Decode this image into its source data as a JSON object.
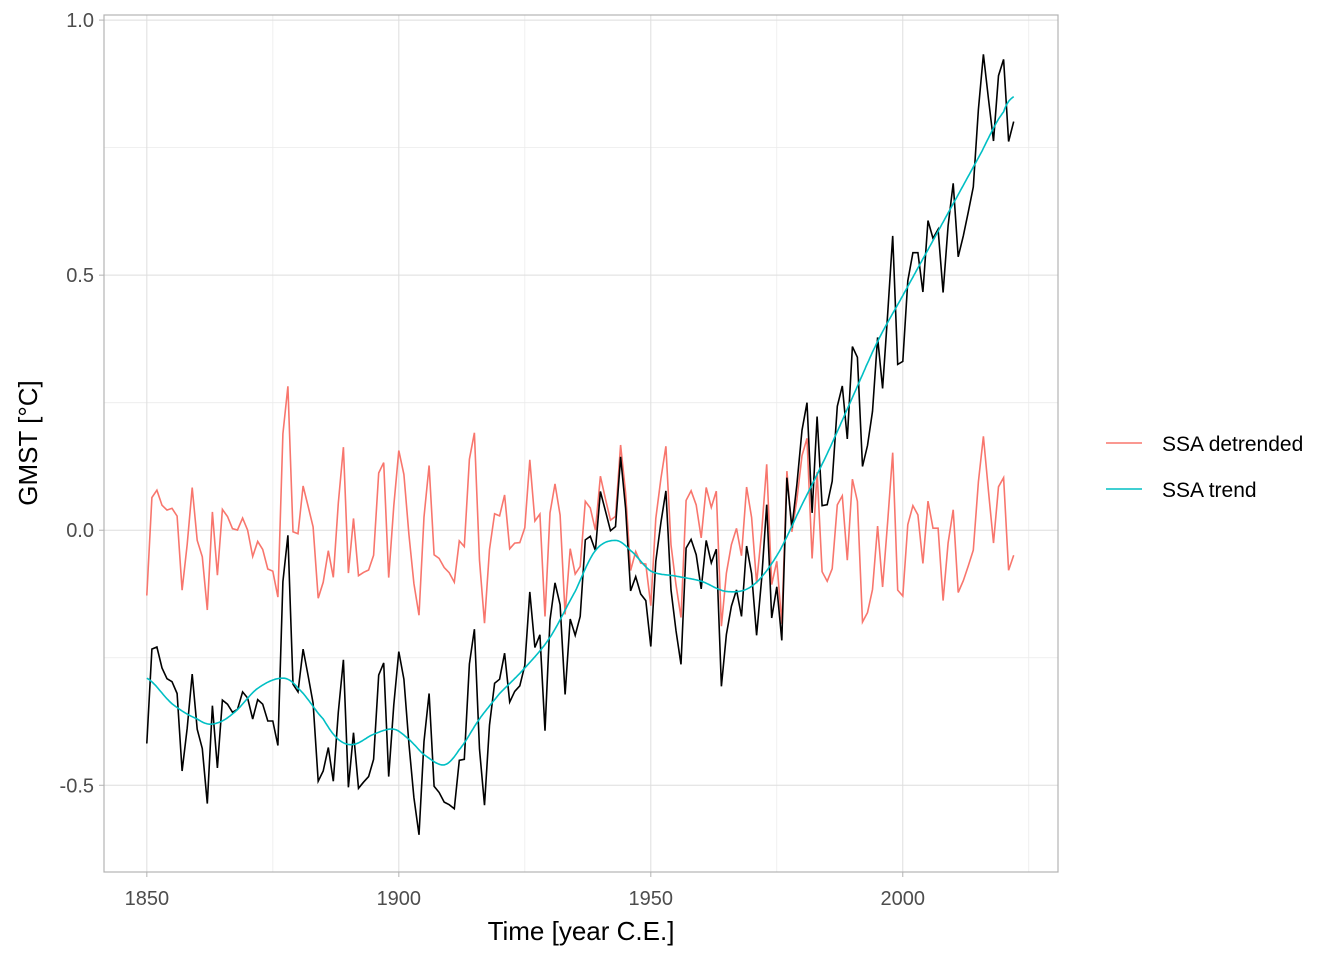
{
  "chart_data": {
    "type": "line",
    "title": "",
    "xlabel": "Time [year C.E.]",
    "ylabel": "GMST [°C]",
    "xlim": [
      1841.5,
      2030.8
    ],
    "ylim": [
      -0.67,
      1.01
    ],
    "xticks": [
      1850,
      1900,
      1950,
      2000
    ],
    "xtick_labels": [
      "1850",
      "1900",
      "1950",
      "2000"
    ],
    "yticks": [
      -0.5,
      0.0,
      0.5,
      1.0
    ],
    "ytick_labels": [
      "-0.5",
      "0.0",
      "0.5",
      "1.0"
    ],
    "grid": true,
    "legend_position": "right",
    "legend": [
      "SSA detrended",
      "SSA trend"
    ],
    "colors": {
      "observed": "#000000",
      "detrended": "#F8766D",
      "trend": "#00BFC4"
    },
    "x_start": 1850,
    "series": [
      {
        "name": "GMST",
        "values": [
          -0.418,
          -0.233,
          -0.229,
          -0.27,
          -0.291,
          -0.297,
          -0.32,
          -0.472,
          -0.388,
          -0.282,
          -0.39,
          -0.428,
          -0.536,
          -0.344,
          -0.466,
          -0.333,
          -0.341,
          -0.357,
          -0.351,
          -0.317,
          -0.329,
          -0.37,
          -0.332,
          -0.341,
          -0.374,
          -0.374,
          -0.422,
          -0.101,
          -0.01,
          -0.302,
          -0.317,
          -0.233,
          -0.285,
          -0.339,
          -0.492,
          -0.472,
          -0.426,
          -0.492,
          -0.357,
          -0.254,
          -0.504,
          -0.397,
          -0.506,
          -0.494,
          -0.483,
          -0.449,
          -0.284,
          -0.26,
          -0.483,
          -0.342,
          -0.238,
          -0.292,
          -0.418,
          -0.524,
          -0.597,
          -0.414,
          -0.32,
          -0.502,
          -0.514,
          -0.533,
          -0.538,
          -0.546,
          -0.451,
          -0.449,
          -0.262,
          -0.194,
          -0.429,
          -0.539,
          -0.382,
          -0.3,
          -0.292,
          -0.241,
          -0.337,
          -0.316,
          -0.305,
          -0.265,
          -0.121,
          -0.23,
          -0.205,
          -0.393,
          -0.176,
          -0.103,
          -0.146,
          -0.322,
          -0.174,
          -0.206,
          -0.169,
          -0.019,
          -0.012,
          -0.04,
          0.076,
          0.038,
          -0.001,
          0.007,
          0.144,
          0.043,
          -0.119,
          -0.091,
          -0.125,
          -0.138,
          -0.228,
          -0.061,
          0.015,
          0.077,
          -0.117,
          -0.197,
          -0.263,
          -0.035,
          -0.018,
          -0.048,
          -0.115,
          -0.02,
          -0.064,
          -0.037,
          -0.306,
          -0.204,
          -0.149,
          -0.117,
          -0.169,
          -0.031,
          -0.085,
          -0.206,
          -0.094,
          0.05,
          -0.172,
          -0.111,
          -0.216,
          0.103,
          0.005,
          0.09,
          0.196,
          0.25,
          0.034,
          0.223,
          0.048,
          0.05,
          0.096,
          0.243,
          0.283,
          0.179,
          0.36,
          0.339,
          0.125,
          0.166,
          0.233,
          0.378,
          0.278,
          0.425,
          0.577,
          0.325,
          0.331,
          0.489,
          0.544,
          0.544,
          0.467,
          0.607,
          0.572,
          0.59,
          0.466,
          0.597,
          0.68,
          0.536,
          0.577,
          0.624,
          0.673,
          0.825,
          0.933,
          0.845,
          0.763,
          0.891,
          0.923,
          0.762,
          0.801
        ]
      },
      {
        "name": "SSA trend",
        "x": [
          1850,
          1855,
          1860,
          1863,
          1867,
          1872,
          1877,
          1880,
          1885,
          1888,
          1891,
          1895,
          1899,
          1902,
          1905,
          1909,
          1912,
          1916,
          1920,
          1925,
          1930,
          1935,
          1939,
          1943,
          1946,
          1950,
          1955,
          1960,
          1965,
          1970,
          1975,
          1980,
          1985,
          1990,
          1995,
          2000,
          2005,
          2010,
          2015,
          2020,
          2022
        ],
        "values": [
          -0.29,
          -0.34,
          -0.37,
          -0.38,
          -0.36,
          -0.31,
          -0.29,
          -0.31,
          -0.37,
          -0.41,
          -0.42,
          -0.4,
          -0.39,
          -0.41,
          -0.44,
          -0.46,
          -0.43,
          -0.37,
          -0.32,
          -0.27,
          -0.21,
          -0.12,
          -0.04,
          -0.02,
          -0.04,
          -0.08,
          -0.09,
          -0.1,
          -0.12,
          -0.11,
          -0.05,
          0.05,
          0.15,
          0.26,
          0.37,
          0.46,
          0.55,
          0.64,
          0.73,
          0.82,
          0.85
        ]
      },
      {
        "name": "SSA detrended",
        "definition": "GMST minus SSA trend"
      }
    ]
  }
}
